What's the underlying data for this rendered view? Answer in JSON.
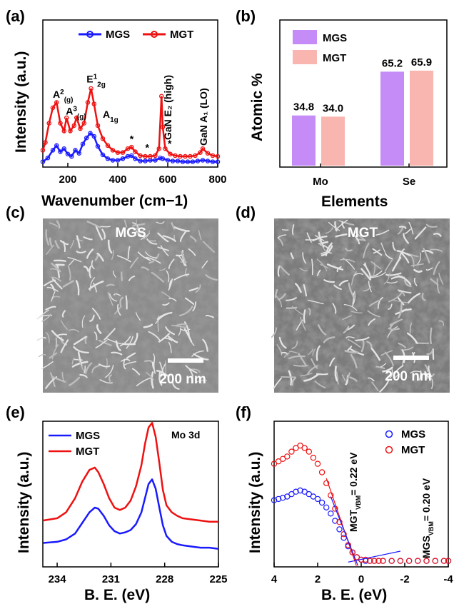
{
  "panel_labels": [
    "(a)",
    "(b)",
    "(c)",
    "(d)",
    "(e)",
    "(f)"
  ],
  "colors": {
    "mgs_line": "#1a1aff",
    "mgt_line": "#ee1111",
    "mgs_bar": "#c58cf7",
    "mgt_bar": "#f9b6b0"
  },
  "chart_data": [
    {
      "panel": "(a)",
      "type": "line",
      "xlabel": "Wavenumber (cm−1)",
      "ylabel": "Intensity (a.u.)",
      "xlim": [
        100,
        800
      ],
      "xticks": [
        "200",
        "400",
        "600",
        "800"
      ],
      "series": [
        {
          "name": "MGS",
          "x": [
            100,
            120,
            140,
            155,
            170,
            185,
            200,
            215,
            230,
            245,
            260,
            275,
            290,
            305,
            320,
            340,
            360,
            380,
            400,
            420,
            440,
            455,
            470,
            490,
            510,
            530,
            550,
            570,
            580,
            600,
            620,
            640,
            660,
            680,
            700,
            720,
            740,
            760,
            780,
            800
          ],
          "y": [
            0.05,
            0.1,
            0.2,
            0.26,
            0.18,
            0.22,
            0.15,
            0.12,
            0.2,
            0.16,
            0.28,
            0.36,
            0.42,
            0.38,
            0.25,
            0.14,
            0.09,
            0.07,
            0.07,
            0.09,
            0.12,
            0.13,
            0.09,
            0.06,
            0.06,
            0.07,
            0.07,
            0.1,
            0.09,
            0.07,
            0.06,
            0.06,
            0.05,
            0.05,
            0.05,
            0.06,
            0.07,
            0.06,
            0.05,
            0.05
          ]
        },
        {
          "name": "MGT",
          "x": [
            100,
            110,
            125,
            140,
            155,
            170,
            185,
            195,
            210,
            225,
            235,
            250,
            265,
            280,
            293,
            305,
            320,
            340,
            360,
            380,
            400,
            420,
            440,
            455,
            470,
            490,
            510,
            530,
            550,
            565,
            575,
            580,
            590,
            610,
            630,
            650,
            670,
            690,
            710,
            730,
            740,
            760,
            780,
            800
          ],
          "y": [
            0.2,
            0.3,
            0.55,
            0.75,
            0.82,
            0.55,
            0.45,
            0.62,
            0.45,
            0.52,
            0.62,
            0.48,
            0.55,
            0.82,
            1.0,
            0.8,
            0.52,
            0.35,
            0.26,
            0.2,
            0.17,
            0.17,
            0.22,
            0.24,
            0.18,
            0.13,
            0.12,
            0.12,
            0.13,
            0.22,
            0.9,
            0.5,
            0.22,
            0.15,
            0.13,
            0.12,
            0.12,
            0.12,
            0.13,
            0.17,
            0.22,
            0.16,
            0.13,
            0.12
          ]
        }
      ],
      "annotations": [
        {
          "text": "A",
          "sup": "2",
          "sub": "(g)",
          "x": 140,
          "y": 0.88
        },
        {
          "text": "A",
          "sup": "3",
          "sub": "(g)",
          "x": 192,
          "y": 0.66
        },
        {
          "text": "E",
          "sup": "1",
          "sub": "2g",
          "x": 275,
          "y": 1.08
        },
        {
          "text": "A",
          "sup": "",
          "sub": "1g",
          "x": 340,
          "y": 0.62
        },
        {
          "text": "*",
          "sup": "",
          "sub": "",
          "x": 448,
          "y": 0.3
        },
        {
          "text": "*",
          "sup": "",
          "sub": "",
          "x": 510,
          "y": 0.19
        },
        {
          "text": "*",
          "sup": "",
          "sub": "",
          "x": 600,
          "y": 0.24
        }
      ],
      "vertical_labels": [
        "GaN E₂ (high)",
        "GaN A₁ (LO)"
      ],
      "legend": "top"
    },
    {
      "panel": "(b)",
      "type": "bar",
      "xlabel": "Elements",
      "ylabel": "Atomic %",
      "categories": [
        "Mo",
        "Se"
      ],
      "ylim": [
        0,
        100
      ],
      "series": [
        {
          "name": "MGS",
          "values": [
            34.8,
            65.2
          ]
        },
        {
          "name": "MGT",
          "values": [
            34.0,
            65.9
          ]
        }
      ],
      "data_labels": [
        "34.8",
        "34.0",
        "65.2",
        "65.9"
      ],
      "legend": "top-left"
    },
    {
      "panel": "(e)",
      "type": "line",
      "xlabel": "B. E. (eV)",
      "ylabel": "Intensity (a.u.)",
      "xlim": [
        234.8,
        225
      ],
      "xticks": [
        "234",
        "231",
        "228",
        "225"
      ],
      "annotation": "Mo 3d",
      "series": [
        {
          "name": "MGS",
          "x": [
            234.8,
            234,
            233.5,
            233,
            232.6,
            232.2,
            231.9,
            231.7,
            231.4,
            231.1,
            230.8,
            230.5,
            230.2,
            229.9,
            229.6,
            229.3,
            229.1,
            228.9,
            228.7,
            228.5,
            228.3,
            228.1,
            227.9,
            227.6,
            227.3,
            227,
            226.5,
            226,
            225.5,
            225
          ],
          "y": [
            0.1,
            0.11,
            0.13,
            0.18,
            0.27,
            0.36,
            0.4,
            0.39,
            0.33,
            0.25,
            0.2,
            0.18,
            0.19,
            0.21,
            0.26,
            0.36,
            0.48,
            0.6,
            0.64,
            0.56,
            0.4,
            0.25,
            0.16,
            0.11,
            0.09,
            0.08,
            0.07,
            0.06,
            0.06,
            0.05
          ]
        },
        {
          "name": "MGT",
          "x": [
            234.8,
            234,
            233.5,
            233,
            232.6,
            232.2,
            231.9,
            231.7,
            231.4,
            231.1,
            230.8,
            230.5,
            230.2,
            229.9,
            229.6,
            229.3,
            229.1,
            228.9,
            228.7,
            228.5,
            228.3,
            228.1,
            227.9,
            227.6,
            227.3,
            227,
            226.5,
            226,
            225.5,
            225
          ],
          "y": [
            0.29,
            0.31,
            0.36,
            0.48,
            0.62,
            0.72,
            0.74,
            0.7,
            0.6,
            0.48,
            0.4,
            0.38,
            0.4,
            0.46,
            0.58,
            0.76,
            0.94,
            1.08,
            1.12,
            1.0,
            0.78,
            0.55,
            0.42,
            0.36,
            0.33,
            0.31,
            0.3,
            0.29,
            0.28,
            0.28
          ]
        }
      ],
      "legend": "top-left"
    },
    {
      "panel": "(f)",
      "type": "scatter",
      "xlabel": "B. E. (eV)",
      "ylabel": "Intensity (a.u.)",
      "xlim": [
        4,
        -4
      ],
      "xticks": [
        "4",
        "2",
        "0",
        "-2",
        "-4"
      ],
      "series": [
        {
          "name": "MGS",
          "x": [
            4,
            3.8,
            3.6,
            3.4,
            3.2,
            3.0,
            2.8,
            2.6,
            2.4,
            2.2,
            2.0,
            1.8,
            1.6,
            1.4,
            1.2,
            1.0,
            0.8,
            0.6,
            0.4,
            0.2,
            0.0,
            -0.2,
            -0.4,
            -0.6,
            -0.8,
            -1.0,
            -1.4,
            -1.8,
            -2.2,
            -2.6,
            -3.0,
            -3.4,
            -3.8,
            -4.0
          ],
          "y": [
            0.52,
            0.53,
            0.54,
            0.55,
            0.57,
            0.59,
            0.6,
            0.59,
            0.57,
            0.55,
            0.53,
            0.5,
            0.46,
            0.41,
            0.35,
            0.28,
            0.21,
            0.14,
            0.09,
            0.05,
            0.03,
            0.02,
            0.02,
            0.02,
            0.02,
            0.02,
            0.02,
            0.02,
            0.02,
            0.02,
            0.02,
            0.02,
            0.02,
            0.02
          ]
        },
        {
          "name": "MGT",
          "x": [
            4,
            3.8,
            3.6,
            3.4,
            3.2,
            3.0,
            2.8,
            2.6,
            2.4,
            2.2,
            2.0,
            1.8,
            1.6,
            1.4,
            1.2,
            1.0,
            0.8,
            0.6,
            0.4,
            0.2,
            0.0,
            -0.2,
            -0.4,
            -0.6,
            -0.8,
            -1.0,
            -1.4,
            -1.8,
            -2.2,
            -2.6,
            -3.0,
            -3.4,
            -3.8,
            -4.0
          ],
          "y": [
            0.82,
            0.84,
            0.86,
            0.88,
            0.92,
            0.95,
            0.97,
            0.95,
            0.92,
            0.87,
            0.82,
            0.75,
            0.66,
            0.56,
            0.45,
            0.34,
            0.24,
            0.15,
            0.09,
            0.05,
            0.03,
            0.03,
            0.02,
            0.02,
            0.02,
            0.02,
            0.02,
            0.02,
            0.02,
            0.02,
            0.02,
            0.02,
            0.02,
            0.02
          ]
        }
      ],
      "fit_annotations": [
        {
          "text": "MGT",
          "sub": "VBM",
          "value": "= 0.22 eV",
          "color": "#ee1111"
        },
        {
          "text": "MGS",
          "sub": "VBM",
          "value": "= 0.20 eV",
          "color": "#000000"
        }
      ],
      "legend": "top-right"
    }
  ],
  "sem_images": [
    {
      "panel": "(c)",
      "title": "MGS",
      "scale_bar": "200 nm"
    },
    {
      "panel": "(d)",
      "title": "MGT",
      "scale_bar": "200 nm"
    }
  ]
}
